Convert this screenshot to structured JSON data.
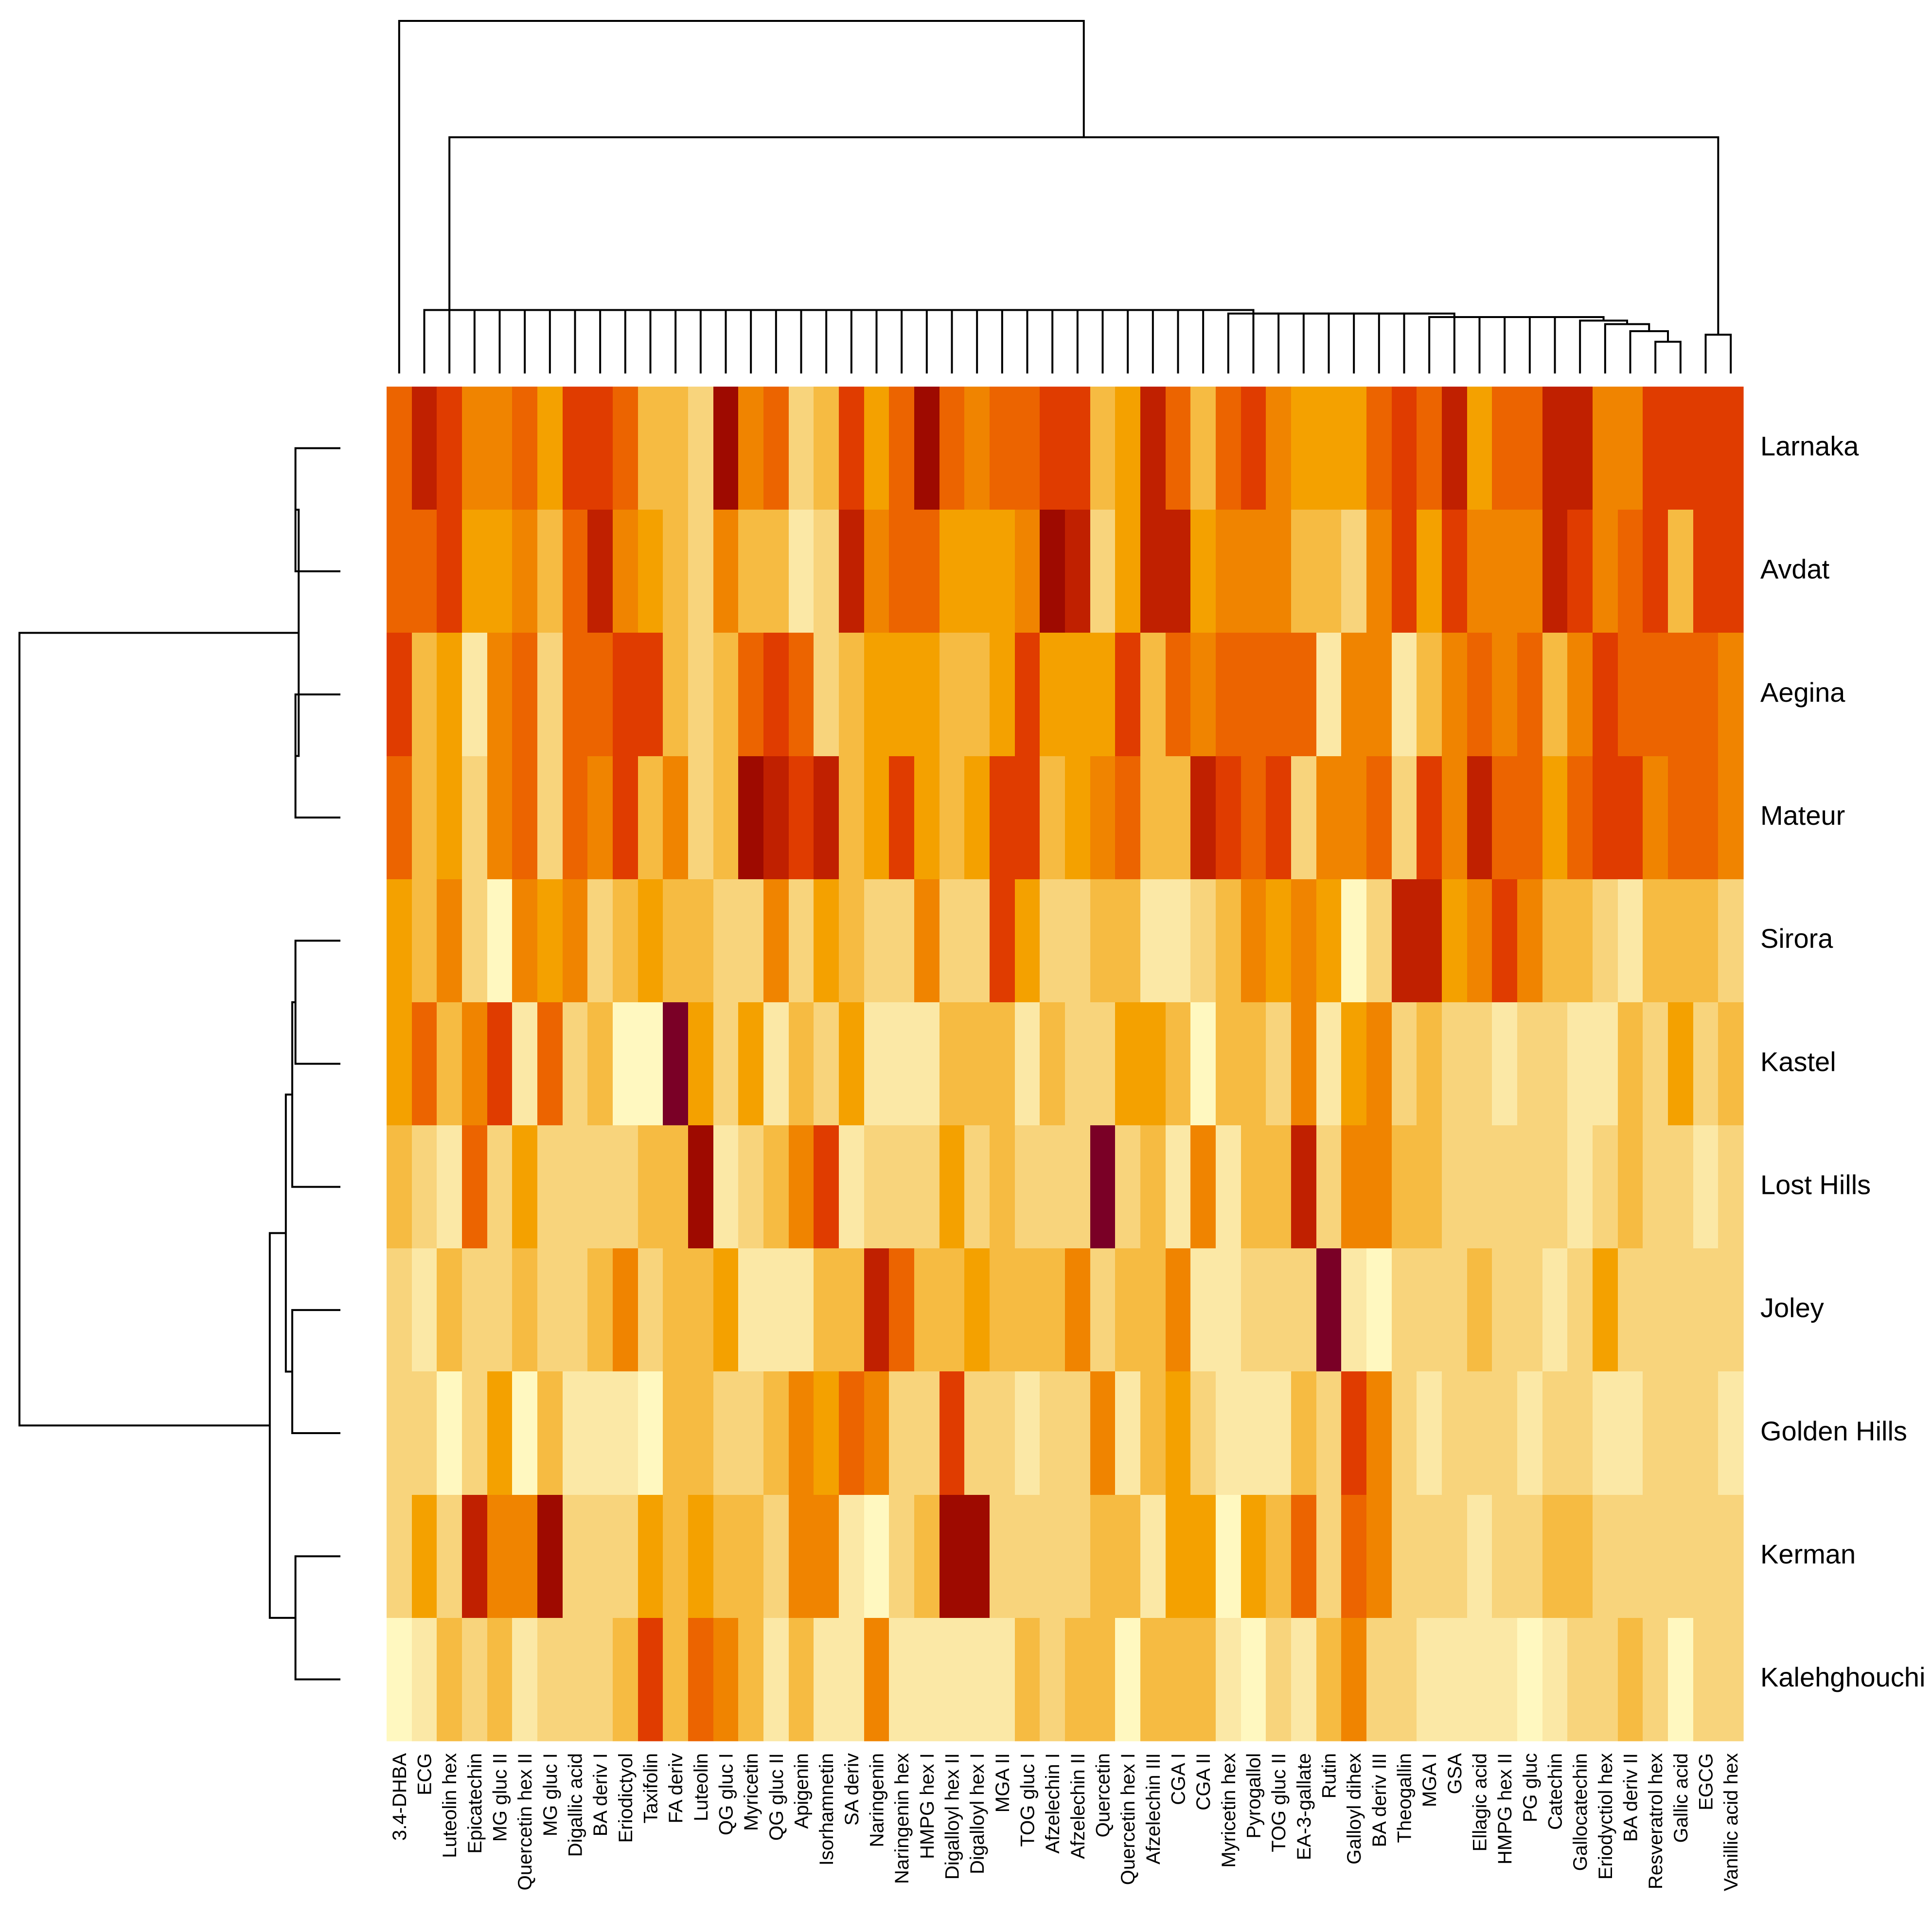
{
  "chart_data": {
    "type": "heatmap",
    "title": "",
    "xlabel": "",
    "ylabel": "",
    "palette": [
      "#FFF8C0",
      "#FBE8A6",
      "#F8D47C",
      "#F6BB42",
      "#F4A100",
      "#F08400",
      "#EC6400",
      "#E03C00",
      "#C02000",
      "#9E0A00",
      "#7A0026"
    ],
    "value_range": [
      0,
      10
    ],
    "rows": [
      "Larnaka",
      "Avdat",
      "Aegina",
      "Mateur",
      "Sirora",
      "Kastel",
      "Lost Hills",
      "Joley",
      "Golden Hills",
      "Kerman",
      "Kalehghouchi"
    ],
    "columns": [
      "3.4-DHBA",
      "ECG",
      "Luteolin hex",
      "Epicatechin",
      "MG gluc II",
      "Quercetin hex II",
      "MG gluc I",
      "Digallic acid",
      "BA deriv I",
      "Eriodictyol",
      "Taxifolin",
      "FA deriv",
      "Luteolin",
      "QG gluc I",
      "Myricetin",
      "QG gluc II",
      "Apigenin",
      "Isorhamnetin",
      "SA deriv",
      "Naringenin",
      "Naringenin hex",
      "HMPG hex I",
      "Digalloyl hex II",
      "Digalloyl hex I",
      "MGA II",
      "TOG gluc I",
      "Afzelechin I",
      "Afzelechin II",
      "Quercetin",
      "Quercetin hex I",
      "Afzelechin III",
      "CGA I",
      "CGA II",
      "Myricetin hex",
      "Pyrogallol",
      "TOG gluc II",
      "EA-3-gallate",
      "Rutin",
      "Galloyl dihex",
      "BA deriv III",
      "Theogallin",
      "MGA I",
      "GSA",
      "Ellagic acid",
      "HMPG hex II",
      "PG gluc",
      "Catechin",
      "Gallocatechin",
      "Eriodyctiol hex",
      "BA deriv II",
      "Resveratrol hex",
      "Gallic acid",
      "EGCG",
      "Vanillic acid hex"
    ],
    "values": [
      [
        6,
        8,
        7,
        5,
        5,
        6,
        4,
        7,
        7,
        6,
        3,
        3,
        2,
        9,
        5,
        6,
        2,
        3,
        7,
        4,
        6,
        9,
        6,
        5,
        6,
        6,
        7,
        7,
        3,
        4,
        8,
        6,
        3,
        6,
        7,
        5,
        4,
        4,
        4,
        6,
        7,
        6,
        8,
        4,
        6,
        6,
        8,
        8,
        5,
        5,
        7,
        7,
        7,
        7
      ],
      [
        6,
        6,
        7,
        4,
        4,
        5,
        3,
        6,
        8,
        5,
        4,
        3,
        2,
        5,
        3,
        3,
        1,
        2,
        8,
        5,
        6,
        6,
        4,
        4,
        4,
        5,
        9,
        8,
        2,
        4,
        8,
        8,
        4,
        5,
        5,
        5,
        3,
        3,
        2,
        5,
        7,
        4,
        7,
        5,
        5,
        5,
        8,
        7,
        5,
        6,
        7,
        3,
        7,
        7
      ],
      [
        7,
        3,
        4,
        1,
        5,
        6,
        2,
        6,
        6,
        7,
        7,
        3,
        2,
        3,
        6,
        7,
        6,
        2,
        3,
        4,
        4,
        4,
        3,
        3,
        4,
        7,
        4,
        4,
        4,
        7,
        3,
        6,
        5,
        6,
        6,
        6,
        6,
        1,
        5,
        5,
        1,
        3,
        5,
        6,
        5,
        6,
        3,
        5,
        7,
        6,
        6,
        6,
        6,
        5
      ],
      [
        6,
        3,
        4,
        2,
        5,
        6,
        2,
        6,
        5,
        7,
        3,
        5,
        2,
        3,
        9,
        8,
        7,
        8,
        3,
        4,
        7,
        4,
        3,
        4,
        7,
        7,
        3,
        4,
        5,
        6,
        3,
        3,
        8,
        7,
        6,
        7,
        2,
        5,
        5,
        6,
        2,
        7,
        5,
        8,
        6,
        6,
        4,
        6,
        7,
        7,
        5,
        6,
        6,
        5
      ],
      [
        4,
        3,
        5,
        2,
        0,
        5,
        4,
        5,
        2,
        3,
        4,
        3,
        3,
        2,
        2,
        5,
        2,
        4,
        3,
        2,
        2,
        5,
        2,
        2,
        7,
        4,
        2,
        2,
        3,
        3,
        1,
        1,
        2,
        3,
        5,
        4,
        5,
        4,
        0,
        2,
        8,
        8,
        4,
        5,
        7,
        5,
        3,
        3,
        2,
        1,
        3,
        3,
        3,
        2
      ],
      [
        4,
        6,
        3,
        5,
        7,
        1,
        6,
        2,
        3,
        0,
        0,
        10,
        4,
        2,
        4,
        1,
        3,
        2,
        4,
        1,
        1,
        1,
        3,
        3,
        3,
        1,
        3,
        2,
        2,
        4,
        4,
        3,
        0,
        3,
        3,
        2,
        5,
        1,
        4,
        5,
        2,
        3,
        2,
        2,
        1,
        2,
        2,
        1,
        1,
        3,
        2,
        4,
        2,
        3
      ],
      [
        3,
        2,
        1,
        6,
        2,
        4,
        2,
        2,
        2,
        2,
        3,
        3,
        9,
        1,
        2,
        3,
        5,
        7,
        1,
        2,
        2,
        2,
        4,
        2,
        3,
        2,
        2,
        2,
        10,
        2,
        3,
        1,
        5,
        1,
        3,
        3,
        8,
        2,
        5,
        5,
        3,
        3,
        2,
        2,
        2,
        2,
        2,
        1,
        2,
        3,
        2,
        2,
        1,
        2
      ],
      [
        2,
        1,
        3,
        2,
        2,
        3,
        2,
        2,
        3,
        5,
        2,
        3,
        3,
        4,
        1,
        1,
        1,
        3,
        3,
        8,
        6,
        3,
        3,
        4,
        3,
        3,
        3,
        5,
        2,
        3,
        3,
        5,
        1,
        1,
        2,
        2,
        2,
        10,
        1,
        0,
        2,
        2,
        2,
        3,
        2,
        2,
        1,
        2,
        4,
        2,
        2,
        2,
        2,
        2
      ],
      [
        2,
        2,
        0,
        2,
        4,
        0,
        3,
        1,
        1,
        1,
        0,
        3,
        3,
        2,
        2,
        3,
        5,
        4,
        6,
        5,
        2,
        2,
        7,
        2,
        2,
        1,
        2,
        2,
        5,
        1,
        3,
        4,
        2,
        1,
        1,
        1,
        3,
        2,
        7,
        5,
        2,
        1,
        2,
        2,
        2,
        1,
        2,
        2,
        1,
        1,
        2,
        2,
        2,
        1
      ],
      [
        2,
        4,
        2,
        8,
        5,
        5,
        9,
        2,
        2,
        2,
        4,
        3,
        4,
        3,
        3,
        2,
        5,
        5,
        1,
        0,
        2,
        3,
        9,
        9,
        2,
        2,
        2,
        2,
        3,
        3,
        1,
        4,
        4,
        0,
        4,
        3,
        6,
        2,
        6,
        5,
        2,
        2,
        2,
        1,
        2,
        2,
        3,
        3,
        2,
        2,
        2,
        2,
        2,
        2
      ],
      [
        0,
        1,
        3,
        2,
        3,
        1,
        2,
        2,
        2,
        3,
        7,
        3,
        6,
        5,
        3,
        1,
        3,
        1,
        1,
        5,
        1,
        1,
        1,
        1,
        1,
        3,
        2,
        3,
        3,
        0,
        3,
        3,
        3,
        1,
        0,
        2,
        1,
        3,
        5,
        2,
        2,
        1,
        1,
        1,
        1,
        0,
        1,
        2,
        2,
        3,
        2,
        0,
        2,
        2
      ]
    ],
    "row_order": [
      0,
      1,
      2,
      3,
      4,
      5,
      6,
      7,
      8,
      9,
      10
    ],
    "column_order": [
      0,
      1,
      2,
      3,
      4,
      5,
      6,
      7,
      8,
      9,
      10,
      11,
      12,
      13,
      14,
      15,
      16,
      17,
      18,
      19,
      20,
      21,
      22,
      23,
      24,
      25,
      26,
      27,
      28,
      29,
      30,
      31,
      32,
      33,
      34,
      35,
      36,
      37,
      38,
      39,
      40,
      41,
      42,
      43,
      44,
      45,
      46,
      47,
      48,
      49,
      50,
      51,
      52,
      53
    ],
    "row_dendrogram": [
      {
        "a": 0,
        "b": 1,
        "h": 0.14
      },
      {
        "a": 2,
        "b": 3,
        "h": 0.14
      },
      {
        "a": 11,
        "b": 12,
        "h": 0.13
      },
      {
        "a": 4,
        "b": 5,
        "h": 0.14
      },
      {
        "a": 14,
        "b": 6,
        "h": 0.15
      },
      {
        "a": 7,
        "b": 8,
        "h": 0.15
      },
      {
        "a": 15,
        "b": 16,
        "h": 0.17
      },
      {
        "a": 9,
        "b": 10,
        "h": 0.14
      },
      {
        "a": 17,
        "b": 18,
        "h": 0.22
      },
      {
        "a": 13,
        "b": 19,
        "h": 1.0
      }
    ],
    "column_dendrogram": [
      {
        "a": 50,
        "b": 51,
        "h": 0.09
      },
      {
        "a": 52,
        "b": 53,
        "h": 0.11
      },
      {
        "a": 49,
        "b": 54,
        "h": 0.12
      },
      {
        "a": 48,
        "b": 56,
        "h": 0.14
      },
      {
        "a": 47,
        "b": 57,
        "h": 0.15
      },
      {
        "a": 46,
        "b": 58,
        "h": 0.16
      },
      {
        "a": 45,
        "b": 59,
        "h": 0.16
      },
      {
        "a": 44,
        "b": 60,
        "h": 0.16
      },
      {
        "a": 43,
        "b": 61,
        "h": 0.16
      },
      {
        "a": 42,
        "b": 62,
        "h": 0.16
      },
      {
        "a": 41,
        "b": 63,
        "h": 0.16
      },
      {
        "a": 40,
        "b": 64,
        "h": 0.17
      },
      {
        "a": 39,
        "b": 65,
        "h": 0.17
      },
      {
        "a": 38,
        "b": 66,
        "h": 0.17
      },
      {
        "a": 37,
        "b": 67,
        "h": 0.17
      },
      {
        "a": 36,
        "b": 68,
        "h": 0.17
      },
      {
        "a": 35,
        "b": 69,
        "h": 0.17
      },
      {
        "a": 34,
        "b": 70,
        "h": 0.17
      },
      {
        "a": 33,
        "b": 71,
        "h": 0.17
      },
      {
        "a": 32,
        "b": 72,
        "h": 0.18
      },
      {
        "a": 31,
        "b": 73,
        "h": 0.18
      },
      {
        "a": 30,
        "b": 74,
        "h": 0.18
      },
      {
        "a": 29,
        "b": 75,
        "h": 0.18
      },
      {
        "a": 28,
        "b": 76,
        "h": 0.18
      },
      {
        "a": 27,
        "b": 77,
        "h": 0.18
      },
      {
        "a": 26,
        "b": 78,
        "h": 0.18
      },
      {
        "a": 25,
        "b": 79,
        "h": 0.18
      },
      {
        "a": 24,
        "b": 80,
        "h": 0.18
      },
      {
        "a": 23,
        "b": 81,
        "h": 0.18
      },
      {
        "a": 22,
        "b": 82,
        "h": 0.18
      },
      {
        "a": 21,
        "b": 83,
        "h": 0.18
      },
      {
        "a": 20,
        "b": 84,
        "h": 0.18
      },
      {
        "a": 19,
        "b": 85,
        "h": 0.18
      },
      {
        "a": 18,
        "b": 86,
        "h": 0.18
      },
      {
        "a": 17,
        "b": 87,
        "h": 0.18
      },
      {
        "a": 16,
        "b": 88,
        "h": 0.18
      },
      {
        "a": 15,
        "b": 89,
        "h": 0.18
      },
      {
        "a": 14,
        "b": 90,
        "h": 0.18
      },
      {
        "a": 13,
        "b": 91,
        "h": 0.18
      },
      {
        "a": 12,
        "b": 92,
        "h": 0.18
      },
      {
        "a": 11,
        "b": 93,
        "h": 0.18
      },
      {
        "a": 10,
        "b": 94,
        "h": 0.18
      },
      {
        "a": 9,
        "b": 95,
        "h": 0.18
      },
      {
        "a": 8,
        "b": 96,
        "h": 0.18
      },
      {
        "a": 7,
        "b": 97,
        "h": 0.18
      },
      {
        "a": 6,
        "b": 98,
        "h": 0.18
      },
      {
        "a": 5,
        "b": 99,
        "h": 0.18
      },
      {
        "a": 4,
        "b": 100,
        "h": 0.18
      },
      {
        "a": 3,
        "b": 101,
        "h": 0.18
      },
      {
        "a": 2,
        "b": 102,
        "h": 0.18
      },
      {
        "a": 1,
        "b": 103,
        "h": 0.18
      },
      {
        "a": 104,
        "b": 55,
        "h": 0.67
      },
      {
        "a": 0,
        "b": 105,
        "h": 1.0
      }
    ]
  }
}
